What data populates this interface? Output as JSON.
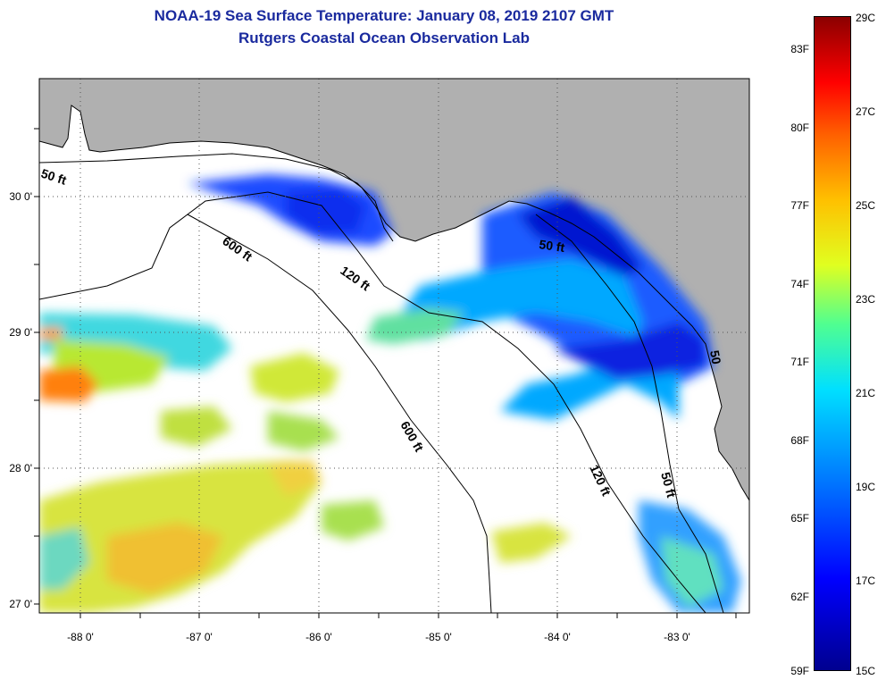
{
  "title_line1": "NOAA-19 Sea Surface Temperature:  January 08, 2019 2107 GMT",
  "title_line2": "Rutgers Coastal Ocean Observation Lab",
  "colors": {
    "title": "#1a2a9e",
    "land": "#b0b0b0",
    "no_data": "#ffffff",
    "colorbar_low": "#00008f",
    "colorbar_high": "#8b0000"
  },
  "map": {
    "lat_labels": [
      "30 0'",
      "29 0'",
      "28 0'",
      "27 0'"
    ],
    "lon_labels": [
      "-88 0'",
      "-87 0'",
      "-86 0'",
      "-85 0'",
      "-84 0'",
      "-83 0'"
    ],
    "contour_labels": [
      "50 ft",
      "600 ft",
      "120 ft",
      "50 ft",
      "600 ft",
      "120 ft",
      "50 ft",
      "50"
    ]
  },
  "colorbar": {
    "fahrenheit_labels": [
      "83F",
      "80F",
      "77F",
      "74F",
      "71F",
      "68F",
      "65F",
      "62F",
      "59F"
    ],
    "celsius_labels": [
      "29C",
      "27C",
      "25C",
      "23C",
      "21C",
      "19C",
      "17C",
      "15C"
    ],
    "range_c": [
      15,
      29
    ]
  }
}
